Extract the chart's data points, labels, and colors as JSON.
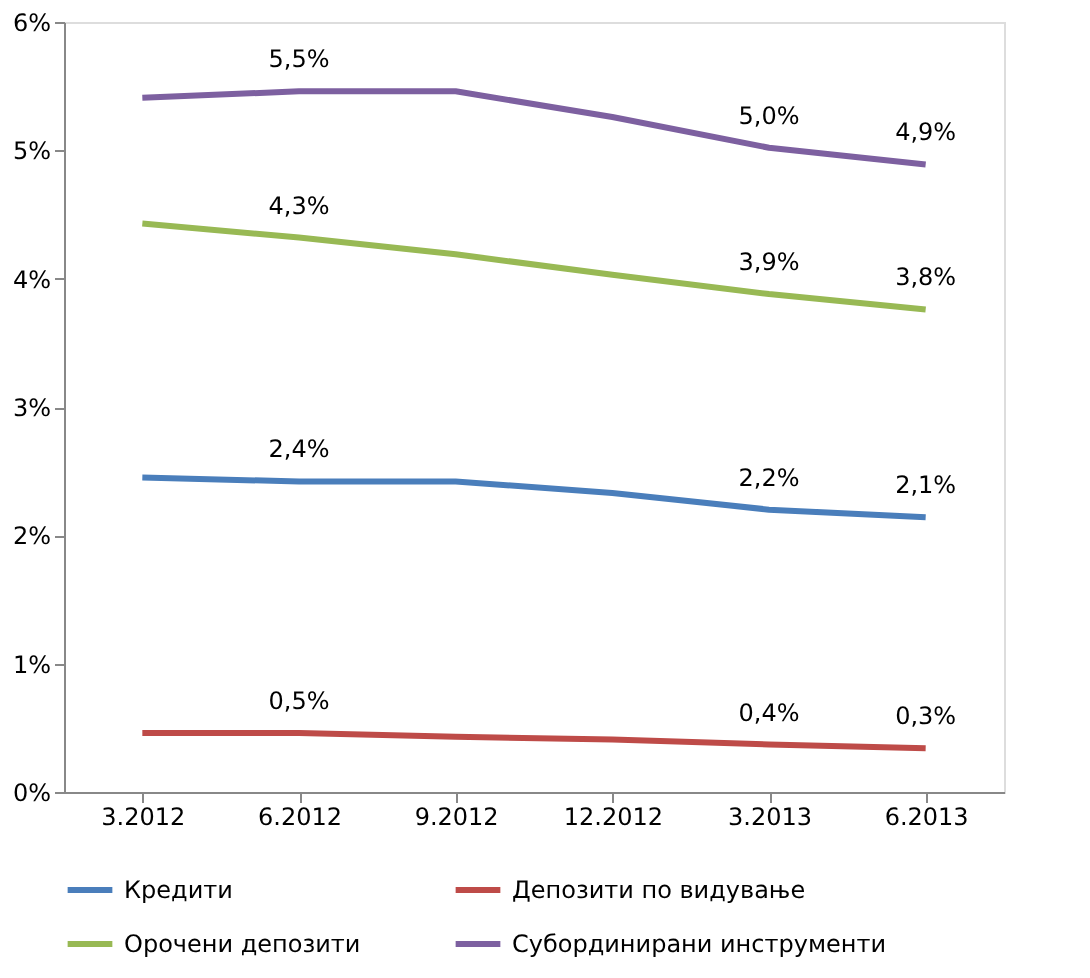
{
  "chart_data": {
    "type": "line",
    "categories": [
      "3.2012",
      "6.2012",
      "9.2012",
      "12.2012",
      "3.2013",
      "6.2013"
    ],
    "series": [
      {
        "name": "Кредити",
        "color": "#4a7ebb",
        "values": [
          2.45,
          2.42,
          2.42,
          2.33,
          2.2,
          2.14
        ],
        "value_labels": [
          null,
          "2,4%",
          null,
          null,
          "2,2%",
          "2,1%"
        ]
      },
      {
        "name": "Депозити по видување",
        "color": "#be4b48",
        "values": [
          0.46,
          0.46,
          0.43,
          0.41,
          0.37,
          0.34
        ],
        "value_labels": [
          null,
          "0,5%",
          null,
          null,
          "0,4%",
          "0,3%"
        ]
      },
      {
        "name": "Орочени депозити",
        "color": "#98b954",
        "values": [
          4.43,
          4.32,
          4.19,
          4.03,
          3.88,
          3.76
        ],
        "value_labels": [
          null,
          "4,3%",
          null,
          null,
          "3,9%",
          "3,8%"
        ]
      },
      {
        "name": "Субординирани инструменти",
        "color": "#7d60a0",
        "values": [
          5.41,
          5.46,
          5.46,
          5.26,
          5.02,
          4.89
        ],
        "value_labels": [
          null,
          "5,5%",
          null,
          null,
          "5,0%",
          "4,9%"
        ]
      }
    ],
    "ylim": [
      0,
      6
    ],
    "yticks": [
      {
        "value": 0,
        "label": "0%"
      },
      {
        "value": 1,
        "label": "1%"
      },
      {
        "value": 2,
        "label": "2%"
      },
      {
        "value": 3,
        "label": "3%"
      },
      {
        "value": 4,
        "label": "4%"
      },
      {
        "value": 5,
        "label": "5%"
      },
      {
        "value": 6,
        "label": "6%"
      }
    ],
    "grid": false,
    "legend": "bottom",
    "marker": "none",
    "line_style": "solid"
  }
}
